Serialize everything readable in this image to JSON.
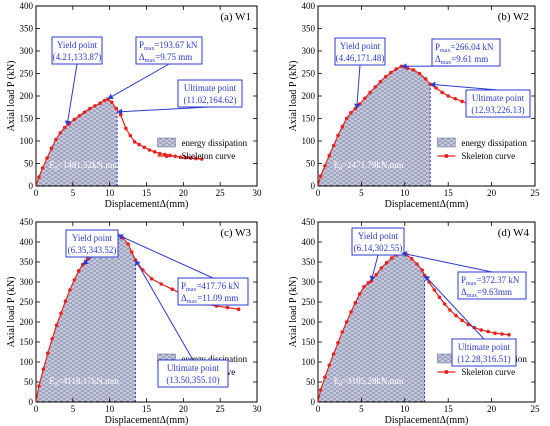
{
  "chart_data": [
    {
      "type": "line",
      "panel_label": "(a) W1",
      "xlabel": "DisplacementΔ(mm)",
      "ylabel": "Axial load P (kN)",
      "xlim": [
        0,
        30
      ],
      "ylim": [
        0,
        400
      ],
      "xticks": [
        "0",
        "5",
        "10",
        "15",
        "20",
        "25",
        "30"
      ],
      "yticks": [
        "0",
        "50",
        "100",
        "150",
        "200",
        "250",
        "300",
        "350",
        "400"
      ],
      "series": [
        {
          "name": "Skeleton curve",
          "color": "#e8231f",
          "x": [
            0.4,
            0.9,
            1.5,
            2.1,
            2.7,
            3.3,
            3.9,
            4.5,
            5.2,
            5.9,
            6.6,
            7.3,
            8.0,
            8.7,
            9.3,
            9.75,
            10.3,
            10.9,
            11.5,
            12.2,
            12.8,
            13.4,
            14.0,
            14.7,
            15.4,
            16.1,
            16.8,
            17.5,
            18.2,
            18.9,
            19.6,
            20.3,
            21.0,
            21.7,
            22.5
          ],
          "y": [
            20,
            40,
            62,
            84,
            103,
            118,
            130,
            138,
            148,
            156,
            164,
            172,
            178,
            184,
            190,
            193,
            186,
            172,
            158,
            128,
            112,
            98,
            92,
            86,
            80,
            76,
            72,
            70,
            68,
            66,
            64,
            63,
            62,
            61,
            60
          ]
        }
      ],
      "energy_x_max": 11.02,
      "energy_label": "E",
      "energy_sub": "d",
      "energy_value": "=1481.52kN.mm",
      "legend_fill": "energy dissipation",
      "legend_line": "Skeleton curve",
      "annotations": [
        {
          "title": "Yield point",
          "value": "(4.21,133.87)",
          "x": 4.21,
          "y": 133.87
        },
        {
          "title": "",
          "pmax": "193.67 kN",
          "dmax": "9.75 mm",
          "x": 9.75,
          "y": 193.67
        },
        {
          "title": "Ultimate point",
          "value": "(11.02,164.62)",
          "x": 11.02,
          "y": 164.62
        }
      ]
    },
    {
      "type": "line",
      "panel_label": "(b) W2",
      "xlabel": "DisplacementΔ(mm)",
      "ylabel": "Axial load P (kN)",
      "xlim": [
        0,
        25
      ],
      "ylim": [
        0,
        400
      ],
      "xticks": [
        "0",
        "5",
        "10",
        "15",
        "20",
        "25"
      ],
      "yticks": [
        "0",
        "50",
        "100",
        "150",
        "200",
        "250",
        "300",
        "350",
        "400"
      ],
      "series": [
        {
          "name": "Skeleton curve",
          "color": "#e8231f",
          "x": [
            0.3,
            0.8,
            1.3,
            1.8,
            2.3,
            2.8,
            3.3,
            3.8,
            4.3,
            4.8,
            5.4,
            6.0,
            6.6,
            7.2,
            7.8,
            8.4,
            9.0,
            9.61,
            10.3,
            11.0,
            11.7,
            12.4,
            12.93,
            13.6,
            14.3,
            15.0,
            15.8,
            16.6,
            17.4,
            18.2,
            19.0
          ],
          "y": [
            22,
            45,
            68,
            90,
            112,
            132,
            150,
            163,
            172,
            182,
            195,
            208,
            220,
            232,
            243,
            252,
            260,
            266,
            262,
            258,
            250,
            238,
            226,
            218,
            208,
            200,
            194,
            188,
            182,
            178,
            174
          ]
        }
      ],
      "energy_x_max": 12.93,
      "energy_label": "E",
      "energy_sub": "d",
      "energy_value": "=2471.79kN.mm",
      "legend_fill": "energy dissipation",
      "legend_line": "Skeleton curve",
      "annotations": [
        {
          "title": "Yield point",
          "value": "(4.46,171.48)",
          "x": 4.46,
          "y": 171.48
        },
        {
          "title": "",
          "pmax": "266.04 kN",
          "dmax": "9.61 mm",
          "x": 9.61,
          "y": 266.04
        },
        {
          "title": "Ultimate point",
          "value": "(12.93,226.13)",
          "x": 12.93,
          "y": 226.13
        }
      ]
    },
    {
      "type": "line",
      "panel_label": "(c) W3",
      "xlabel": "DisplacementΔ(mm)",
      "ylabel": "Axial load P (kN)",
      "xlim": [
        0,
        30
      ],
      "ylim": [
        0,
        450
      ],
      "xticks": [
        "0",
        "5",
        "10",
        "15",
        "20",
        "25",
        "30"
      ],
      "yticks": [
        "0",
        "50",
        "100",
        "150",
        "200",
        "250",
        "300",
        "350",
        "400",
        "450"
      ],
      "series": [
        {
          "name": "Skeleton curve",
          "color": "#e8231f",
          "x": [
            0.4,
            1.0,
            1.6,
            2.2,
            2.8,
            3.4,
            4.0,
            4.6,
            5.2,
            5.8,
            6.35,
            7.0,
            7.7,
            8.4,
            9.1,
            9.8,
            10.4,
            11.09,
            11.8,
            12.5,
            13.0,
            13.5,
            14.5,
            15.7,
            17.0,
            18.5,
            20.0,
            21.5,
            23.0,
            24.5,
            26.0,
            27.5
          ],
          "y": [
            40,
            82,
            122,
            158,
            192,
            222,
            252,
            280,
            305,
            328,
            343.5,
            358,
            372,
            385,
            395,
            405,
            412,
            417.8,
            410,
            395,
            375,
            355,
            330,
            308,
            295,
            282,
            268,
            255,
            245,
            240,
            236,
            232
          ]
        }
      ],
      "energy_x_max": 13.5,
      "energy_label": "E",
      "energy_sub": "d",
      "energy_value": "=4118.17kN.mm",
      "legend_fill": "energy dissipation",
      "legend_line": "Skeleton curve",
      "annotations": [
        {
          "title": "Yield point",
          "value": "(6.35,343.52)",
          "x": 6.35,
          "y": 343.52
        },
        {
          "title": "",
          "pmax": "417.76 kN",
          "dmax": "11.09 mm",
          "x": 11.09,
          "y": 417.76
        },
        {
          "title": "Ultimate point",
          "value": "(13.50,355.10)",
          "x": 13.5,
          "y": 355.1
        }
      ]
    },
    {
      "type": "line",
      "panel_label": "(d) W4",
      "xlabel": "DisplacementΔ(mm)",
      "ylabel": "Axial load P (kN)",
      "xlim": [
        0,
        25
      ],
      "ylim": [
        0,
        450
      ],
      "xticks": [
        "0",
        "5",
        "10",
        "15",
        "20",
        "25"
      ],
      "yticks": [
        "0",
        "50",
        "100",
        "150",
        "200",
        "250",
        "300",
        "350",
        "400",
        "450"
      ],
      "series": [
        {
          "name": "Skeleton curve",
          "color": "#e8231f",
          "x": [
            0.3,
            0.8,
            1.3,
            1.8,
            2.3,
            2.8,
            3.3,
            3.8,
            4.3,
            4.8,
            5.3,
            5.8,
            6.14,
            6.7,
            7.3,
            7.9,
            8.5,
            9.0,
            9.63,
            10.2,
            10.8,
            11.4,
            12.0,
            12.28,
            12.8,
            13.4,
            14.0,
            14.6,
            15.2,
            15.9,
            16.6,
            17.3,
            18.0,
            18.8,
            19.6,
            20.4,
            21.2,
            22.0
          ],
          "y": [
            30,
            62,
            92,
            120,
            148,
            175,
            200,
            225,
            248,
            270,
            288,
            298,
            302.5,
            318,
            335,
            348,
            360,
            368,
            372.4,
            368,
            358,
            345,
            330,
            316.5,
            300,
            280,
            262,
            245,
            230,
            216,
            204,
            194,
            186,
            180,
            176,
            172,
            170,
            168
          ]
        }
      ],
      "energy_x_max": 12.28,
      "energy_label": "E",
      "energy_sub": "d",
      "energy_value": "=3105.28kN.mm",
      "legend_fill": "energy dissipation",
      "legend_line": "Skeleton curve",
      "annotations": [
        {
          "title": "Yield point",
          "value": "(6.14,302.55)",
          "x": 6.14,
          "y": 302.55
        },
        {
          "title": "",
          "pmax": "372.37 kN",
          "dmax": "9.63mm",
          "x": 9.63,
          "y": 372.37
        },
        {
          "title": "Ultimate point",
          "value": "(12.28,316.51)",
          "x": 12.28,
          "y": 316.51
        }
      ]
    }
  ]
}
